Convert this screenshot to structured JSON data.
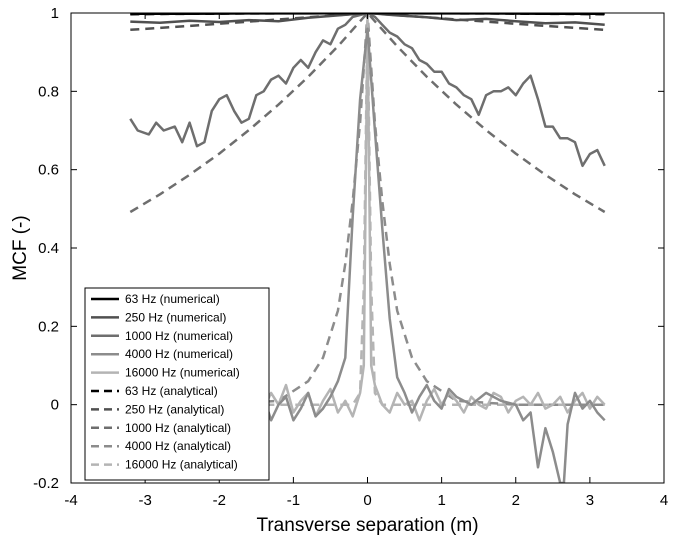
{
  "chart_data": {
    "type": "line",
    "xlabel": "Transverse separation (m)",
    "ylabel": "MCF (-)",
    "xlim": [
      -4,
      4
    ],
    "ylim": [
      -0.2,
      1
    ],
    "xticks": [
      -4,
      -3,
      -2,
      -1,
      0,
      1,
      2,
      3,
      4
    ],
    "yticks": [
      -0.2,
      0,
      0.2,
      0.4,
      0.6,
      0.8,
      1
    ],
    "xtick_labels": [
      "-4",
      "-3",
      "-2",
      "-1",
      "0",
      "1",
      "2",
      "3",
      "4"
    ],
    "ytick_labels": [
      "-0.2",
      "0",
      "0.2",
      "0.4",
      "0.6",
      "0.8",
      "1"
    ],
    "grid": false,
    "legend_position": "bottom-left",
    "series": [
      {
        "name": "63 Hz (numerical)",
        "style": "solid",
        "color": "#000000",
        "x": [
          -3.2,
          -2.4,
          -1.6,
          -0.8,
          0,
          0.8,
          1.6,
          2.4,
          3.2
        ],
        "y": [
          0.998,
          0.998,
          0.999,
          0.999,
          1.0,
          0.999,
          0.999,
          0.998,
          0.998
        ]
      },
      {
        "name": "250 Hz (numerical)",
        "style": "solid",
        "color": "#505050",
        "x": [
          -3.2,
          -2.8,
          -2.4,
          -2.0,
          -1.6,
          -1.2,
          -0.8,
          -0.4,
          0,
          0.4,
          0.8,
          1.2,
          1.6,
          2.0,
          2.4,
          2.8,
          3.2
        ],
        "y": [
          0.978,
          0.975,
          0.98,
          0.977,
          0.982,
          0.979,
          0.988,
          0.994,
          1.0,
          0.994,
          0.989,
          0.982,
          0.985,
          0.979,
          0.974,
          0.976,
          0.97
        ]
      },
      {
        "name": "1000 Hz (numerical)",
        "style": "solid",
        "color": "#6e6e6e",
        "x": [
          -3.2,
          -3.1,
          -2.95,
          -2.85,
          -2.75,
          -2.6,
          -2.5,
          -2.4,
          -2.3,
          -2.2,
          -2.1,
          -2.0,
          -1.9,
          -1.8,
          -1.7,
          -1.6,
          -1.5,
          -1.4,
          -1.3,
          -1.2,
          -1.1,
          -1.0,
          -0.9,
          -0.8,
          -0.7,
          -0.6,
          -0.5,
          -0.4,
          -0.3,
          -0.2,
          -0.1,
          0,
          0.1,
          0.2,
          0.3,
          0.4,
          0.5,
          0.6,
          0.7,
          0.8,
          0.9,
          1.0,
          1.1,
          1.2,
          1.3,
          1.4,
          1.5,
          1.6,
          1.7,
          1.8,
          1.9,
          2.0,
          2.1,
          2.2,
          2.3,
          2.4,
          2.5,
          2.6,
          2.7,
          2.8,
          2.9,
          3.0,
          3.1,
          3.2
        ],
        "y": [
          0.73,
          0.7,
          0.69,
          0.72,
          0.7,
          0.71,
          0.67,
          0.72,
          0.66,
          0.67,
          0.75,
          0.78,
          0.79,
          0.75,
          0.72,
          0.73,
          0.79,
          0.8,
          0.83,
          0.84,
          0.82,
          0.86,
          0.88,
          0.86,
          0.9,
          0.93,
          0.92,
          0.96,
          0.97,
          0.99,
          0.995,
          1.0,
          0.99,
          0.97,
          0.95,
          0.94,
          0.92,
          0.91,
          0.88,
          0.87,
          0.85,
          0.85,
          0.82,
          0.81,
          0.79,
          0.78,
          0.74,
          0.79,
          0.8,
          0.8,
          0.81,
          0.79,
          0.82,
          0.84,
          0.78,
          0.71,
          0.71,
          0.68,
          0.68,
          0.67,
          0.61,
          0.64,
          0.65,
          0.61
        ]
      },
      {
        "name": "4000 Hz (numerical)",
        "style": "solid",
        "color": "#8c8c8c",
        "x": [
          -3.2,
          -3.0,
          -2.8,
          -2.6,
          -2.4,
          -2.2,
          -2.0,
          -1.8,
          -1.6,
          -1.4,
          -1.3,
          -1.2,
          -1.1,
          -1.0,
          -0.9,
          -0.8,
          -0.7,
          -0.6,
          -0.5,
          -0.4,
          -0.3,
          -0.2,
          -0.1,
          0,
          0.1,
          0.2,
          0.3,
          0.4,
          0.5,
          0.6,
          0.7,
          0.8,
          0.9,
          1.0,
          1.1,
          1.2,
          1.4,
          1.6,
          1.8,
          2.0,
          2.1,
          2.2,
          2.3,
          2.4,
          2.5,
          2.6,
          2.65,
          2.7,
          2.8,
          2.9,
          3.0,
          3.1,
          3.2
        ],
        "y": [
          -0.01,
          -0.02,
          0.0,
          -0.03,
          -0.01,
          0.0,
          -0.02,
          0.01,
          -0.02,
          0.02,
          -0.04,
          0.0,
          0.02,
          -0.04,
          -0.01,
          0.03,
          -0.03,
          -0.01,
          0.02,
          0.06,
          0.12,
          0.48,
          0.78,
          0.96,
          0.7,
          0.45,
          0.22,
          0.07,
          0.03,
          -0.02,
          0.02,
          0.05,
          0.01,
          -0.01,
          0.04,
          0.02,
          0.0,
          0.03,
          0.01,
          0.0,
          -0.04,
          -0.02,
          -0.16,
          -0.06,
          -0.12,
          -0.2,
          -0.2,
          -0.05,
          0.03,
          -0.01,
          0.01,
          -0.02,
          -0.04
        ]
      },
      {
        "name": "16000 Hz (numerical)",
        "style": "solid",
        "color": "#b4b4b4",
        "x": [
          -3.2,
          -3.1,
          -3.0,
          -2.9,
          -2.8,
          -2.7,
          -2.6,
          -2.5,
          -2.4,
          -2.3,
          -2.2,
          -2.1,
          -2.0,
          -1.9,
          -1.8,
          -1.7,
          -1.6,
          -1.5,
          -1.4,
          -1.3,
          -1.2,
          -1.1,
          -1.0,
          -0.9,
          -0.8,
          -0.7,
          -0.6,
          -0.5,
          -0.4,
          -0.3,
          -0.2,
          -0.1,
          -0.05,
          0,
          0.05,
          0.1,
          0.2,
          0.3,
          0.4,
          0.5,
          0.6,
          0.7,
          0.8,
          0.9,
          1.0,
          1.1,
          1.2,
          1.3,
          1.4,
          1.5,
          1.6,
          1.7,
          1.8,
          1.9,
          2.0,
          2.1,
          2.2,
          2.3,
          2.4,
          2.5,
          2.6,
          2.7,
          2.8,
          2.9,
          3.0,
          3.1,
          3.2
        ],
        "y": [
          -0.02,
          0.03,
          -0.01,
          0.02,
          -0.02,
          -0.05,
          0.01,
          0.03,
          -0.02,
          0.0,
          0.03,
          0.04,
          -0.03,
          0.01,
          0.04,
          -0.01,
          0.02,
          0.03,
          -0.01,
          0.03,
          0.0,
          0.05,
          -0.02,
          0.01,
          0.03,
          -0.03,
          0.01,
          0.04,
          -0.02,
          0.01,
          -0.03,
          0.03,
          0.1,
          0.98,
          0.1,
          0.05,
          0.0,
          -0.02,
          0.03,
          0.0,
          0.01,
          -0.04,
          0.01,
          0.04,
          0.0,
          0.03,
          0.01,
          -0.02,
          0.02,
          0.0,
          -0.01,
          0.03,
          0.02,
          -0.02,
          0.01,
          0.02,
          0.0,
          0.03,
          -0.01,
          0.0,
          0.02,
          -0.02,
          0.01,
          0.03,
          -0.01,
          0.02,
          0.0
        ]
      },
      {
        "name": "63 Hz (analytical)",
        "style": "dashed",
        "color": "#000000",
        "x": [
          -3.2,
          -1.6,
          0,
          1.6,
          3.2
        ],
        "y": [
          0.997,
          0.999,
          1.0,
          0.999,
          0.997
        ]
      },
      {
        "name": "250 Hz (analytical)",
        "style": "dashed",
        "color": "#505050",
        "x": [
          -3.2,
          -2.4,
          -1.6,
          -0.8,
          0,
          0.8,
          1.6,
          2.4,
          3.2
        ],
        "y": [
          0.957,
          0.967,
          0.978,
          0.989,
          1.0,
          0.989,
          0.978,
          0.967,
          0.957
        ]
      },
      {
        "name": "1000 Hz (analytical)",
        "style": "dashed",
        "color": "#6e6e6e",
        "x": [
          -3.2,
          -2.8,
          -2.4,
          -2.0,
          -1.6,
          -1.2,
          -0.8,
          -0.4,
          0,
          0.4,
          0.8,
          1.2,
          1.6,
          2.0,
          2.4,
          2.8,
          3.2
        ],
        "y": [
          0.492,
          0.537,
          0.587,
          0.641,
          0.701,
          0.766,
          0.837,
          0.915,
          1.0,
          0.915,
          0.837,
          0.766,
          0.701,
          0.641,
          0.587,
          0.537,
          0.492
        ]
      },
      {
        "name": "4000 Hz (analytical)",
        "style": "dashed",
        "color": "#8c8c8c",
        "x": [
          -3.2,
          -2.0,
          -1.2,
          -0.8,
          -0.6,
          -0.4,
          -0.3,
          -0.2,
          -0.1,
          0,
          0.1,
          0.2,
          0.3,
          0.4,
          0.6,
          0.8,
          1.2,
          2.0,
          3.2
        ],
        "y": [
          0.0,
          0.0,
          0.01,
          0.06,
          0.12,
          0.24,
          0.36,
          0.52,
          0.72,
          1.0,
          0.72,
          0.52,
          0.36,
          0.24,
          0.12,
          0.06,
          0.01,
          0.0,
          0.0
        ]
      },
      {
        "name": "16000 Hz (analytical)",
        "style": "dashed",
        "color": "#b4b4b4",
        "x": [
          -3.2,
          -0.2,
          -0.1,
          -0.05,
          0,
          0.05,
          0.1,
          0.2,
          3.2
        ],
        "y": [
          0.0,
          0.0,
          0.03,
          0.3,
          1.0,
          0.3,
          0.03,
          0.0,
          0.0
        ]
      }
    ]
  }
}
